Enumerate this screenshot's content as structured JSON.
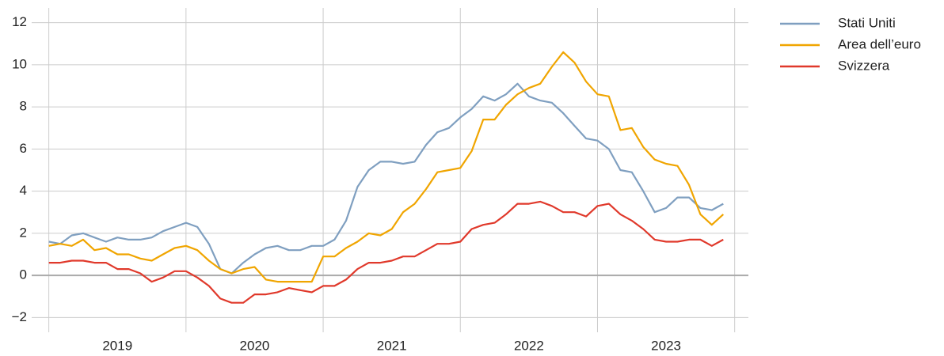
{
  "chart_data": {
    "type": "line",
    "x": [
      2019.0,
      2019.083,
      2019.167,
      2019.25,
      2019.333,
      2019.417,
      2019.5,
      2019.583,
      2019.667,
      2019.75,
      2019.833,
      2019.917,
      2020.0,
      2020.083,
      2020.167,
      2020.25,
      2020.333,
      2020.417,
      2020.5,
      2020.583,
      2020.667,
      2020.75,
      2020.833,
      2020.917,
      2021.0,
      2021.083,
      2021.167,
      2021.25,
      2021.333,
      2021.417,
      2021.5,
      2021.583,
      2021.667,
      2021.75,
      2021.833,
      2021.917,
      2022.0,
      2022.083,
      2022.167,
      2022.25,
      2022.333,
      2022.417,
      2022.5,
      2022.583,
      2022.667,
      2022.75,
      2022.833,
      2022.917,
      2023.0,
      2023.083,
      2023.167,
      2023.25,
      2023.333,
      2023.417,
      2023.5,
      2023.583,
      2023.667,
      2023.75,
      2023.833,
      2023.917
    ],
    "series": [
      {
        "name": "Stati Uniti",
        "color": "#7f9fc0",
        "values": [
          1.6,
          1.5,
          1.9,
          2.0,
          1.8,
          1.6,
          1.8,
          1.7,
          1.7,
          1.8,
          2.1,
          2.3,
          2.5,
          2.3,
          1.5,
          0.3,
          0.1,
          0.6,
          1.0,
          1.3,
          1.4,
          1.2,
          1.2,
          1.4,
          1.4,
          1.7,
          2.6,
          4.2,
          5.0,
          5.4,
          5.4,
          5.3,
          5.4,
          6.2,
          6.8,
          7.0,
          7.5,
          7.9,
          8.5,
          8.3,
          8.6,
          9.1,
          8.5,
          8.3,
          8.2,
          7.7,
          7.1,
          6.5,
          6.4,
          6.0,
          5.0,
          4.9,
          4.0,
          3.0,
          3.2,
          3.7,
          3.7,
          3.2,
          3.1,
          3.4
        ]
      },
      {
        "name": "Area dell’euro",
        "color": "#f0a500",
        "values": [
          1.4,
          1.5,
          1.4,
          1.7,
          1.2,
          1.3,
          1.0,
          1.0,
          0.8,
          0.7,
          1.0,
          1.3,
          1.4,
          1.2,
          0.7,
          0.3,
          0.1,
          0.3,
          0.4,
          -0.2,
          -0.3,
          -0.3,
          -0.3,
          -0.3,
          0.9,
          0.9,
          1.3,
          1.6,
          2.0,
          1.9,
          2.2,
          3.0,
          3.4,
          4.1,
          4.9,
          5.0,
          5.1,
          5.9,
          7.4,
          7.4,
          8.1,
          8.6,
          8.9,
          9.1,
          9.9,
          10.6,
          10.1,
          9.2,
          8.6,
          8.5,
          6.9,
          7.0,
          6.1,
          5.5,
          5.3,
          5.2,
          4.3,
          2.9,
          2.4,
          2.9
        ]
      },
      {
        "name": "Svizzera",
        "color": "#e0392b",
        "values": [
          0.6,
          0.6,
          0.7,
          0.7,
          0.6,
          0.6,
          0.3,
          0.3,
          0.1,
          -0.3,
          -0.1,
          0.2,
          0.2,
          -0.1,
          -0.5,
          -1.1,
          -1.3,
          -1.3,
          -0.9,
          -0.9,
          -0.8,
          -0.6,
          -0.7,
          -0.8,
          -0.5,
          -0.5,
          -0.2,
          0.3,
          0.6,
          0.6,
          0.7,
          0.9,
          0.9,
          1.2,
          1.5,
          1.5,
          1.6,
          2.2,
          2.4,
          2.5,
          2.9,
          3.4,
          3.4,
          3.5,
          3.3,
          3.0,
          3.0,
          2.8,
          3.3,
          3.4,
          2.9,
          2.6,
          2.2,
          1.7,
          1.6,
          1.6,
          1.7,
          1.7,
          1.4,
          1.7
        ]
      }
    ],
    "xlim": [
      2018.875,
      2024.1
    ],
    "xgrid": [
      2019,
      2020,
      2021,
      2022,
      2023,
      2024
    ],
    "xticks": [
      {
        "value": 2019.5,
        "label": "2019"
      },
      {
        "value": 2020.5,
        "label": "2020"
      },
      {
        "value": 2021.5,
        "label": "2021"
      },
      {
        "value": 2022.5,
        "label": "2022"
      },
      {
        "value": 2023.5,
        "label": "2023"
      }
    ],
    "ylim": [
      -2.7,
      12.7
    ],
    "yticks": [
      {
        "value": -2,
        "label": "−2"
      },
      0,
      2,
      4,
      6,
      8,
      10,
      12
    ],
    "grid": true,
    "legend": "top-right"
  }
}
